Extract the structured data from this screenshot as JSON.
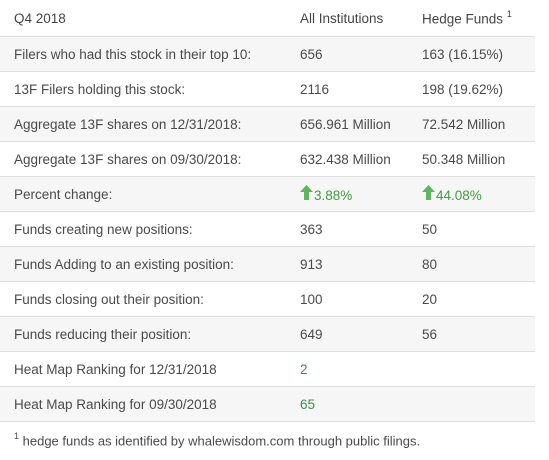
{
  "header": {
    "period": "Q4 2018",
    "col_all": "All Institutions",
    "col_hedge": "Hedge Funds",
    "col_hedge_note": "1"
  },
  "rows": [
    {
      "label": "Filers who had this stock in their top 10:",
      "all": "656",
      "hedge": "163 (16.15%)"
    },
    {
      "label": "13F Filers holding this stock:",
      "all": "2116",
      "hedge": "198 (19.62%)"
    },
    {
      "label": "Aggregate 13F shares on 12/31/2018:",
      "all": "656.961 Million",
      "hedge": "72.542 Million"
    },
    {
      "label": "Aggregate 13F shares on 09/30/2018:",
      "all": "632.438 Million",
      "hedge": "50.348 Million"
    },
    {
      "label": "Percent change:",
      "all": "3.88%",
      "hedge": "44.08%",
      "icon": "up-arrow-icon"
    },
    {
      "label": "Funds creating new positions:",
      "all": "363",
      "hedge": "50"
    },
    {
      "label": "Funds Adding to an existing position:",
      "all": "913",
      "hedge": "80"
    },
    {
      "label": "Funds closing out their position:",
      "all": "100",
      "hedge": "20"
    },
    {
      "label": "Funds reducing their position:",
      "all": "649",
      "hedge": "56"
    },
    {
      "label": "Heat Map Ranking for 12/31/2018",
      "all": "2",
      "hedge": ""
    },
    {
      "label": "Heat Map Ranking for 09/30/2018",
      "all": "65",
      "hedge": ""
    }
  ],
  "footnote": {
    "marker": "1",
    "text": "hedge funds as identified by whalewisdom.com through public filings."
  },
  "colors": {
    "positive": "#3f9c3f",
    "link": "#3f8f4a",
    "row_alt": "#f6f6f6",
    "border": "#dedede"
  }
}
